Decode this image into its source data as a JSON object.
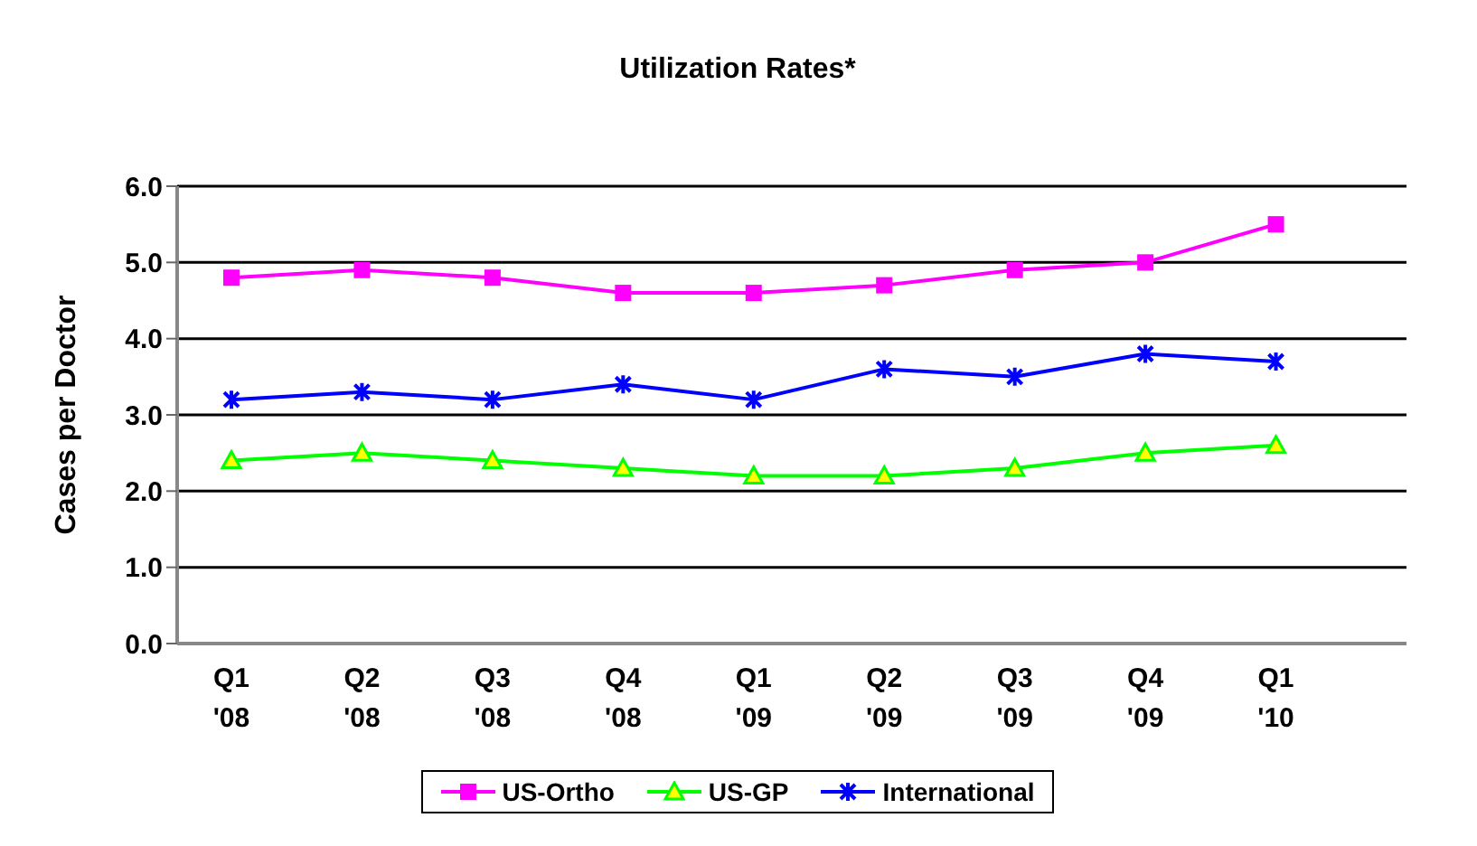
{
  "chart_data": {
    "type": "line",
    "title": "Utilization Rates*",
    "ylabel": "Cases per Doctor",
    "categories": [
      "Q1\n'08",
      "Q2\n'08",
      "Q3\n'08",
      "Q4\n'08",
      "Q1\n'09",
      "Q2\n'09",
      "Q3\n'09",
      "Q4\n'09",
      "Q1\n'10",
      null
    ],
    "series": [
      {
        "name": "US-Ortho",
        "color": "#ff00ff",
        "marker": "square",
        "values": [
          4.8,
          4.9,
          4.8,
          4.6,
          4.6,
          4.7,
          4.9,
          5.0,
          5.5,
          null
        ]
      },
      {
        "name": "US-GP",
        "color": "#00ff00",
        "marker": "triangle",
        "values": [
          2.4,
          2.5,
          2.4,
          2.3,
          2.2,
          2.2,
          2.3,
          2.5,
          2.6,
          null
        ]
      },
      {
        "name": "International",
        "color": "#0000ff",
        "marker": "cross",
        "values": [
          3.2,
          3.3,
          3.2,
          3.4,
          3.2,
          3.6,
          3.5,
          3.8,
          3.7,
          null
        ]
      }
    ],
    "ylim": [
      0,
      6
    ],
    "yticks": [
      {
        "value": 0,
        "label": "0.0"
      },
      {
        "value": 1,
        "label": "1.0"
      },
      {
        "value": 2,
        "label": "2.0"
      },
      {
        "value": 3,
        "label": "3.0"
      },
      {
        "value": 4,
        "label": "4.0"
      },
      {
        "value": 5,
        "label": "5.0"
      },
      {
        "value": 6,
        "label": "6.0"
      }
    ],
    "grid": "y",
    "legend": "bottom"
  }
}
